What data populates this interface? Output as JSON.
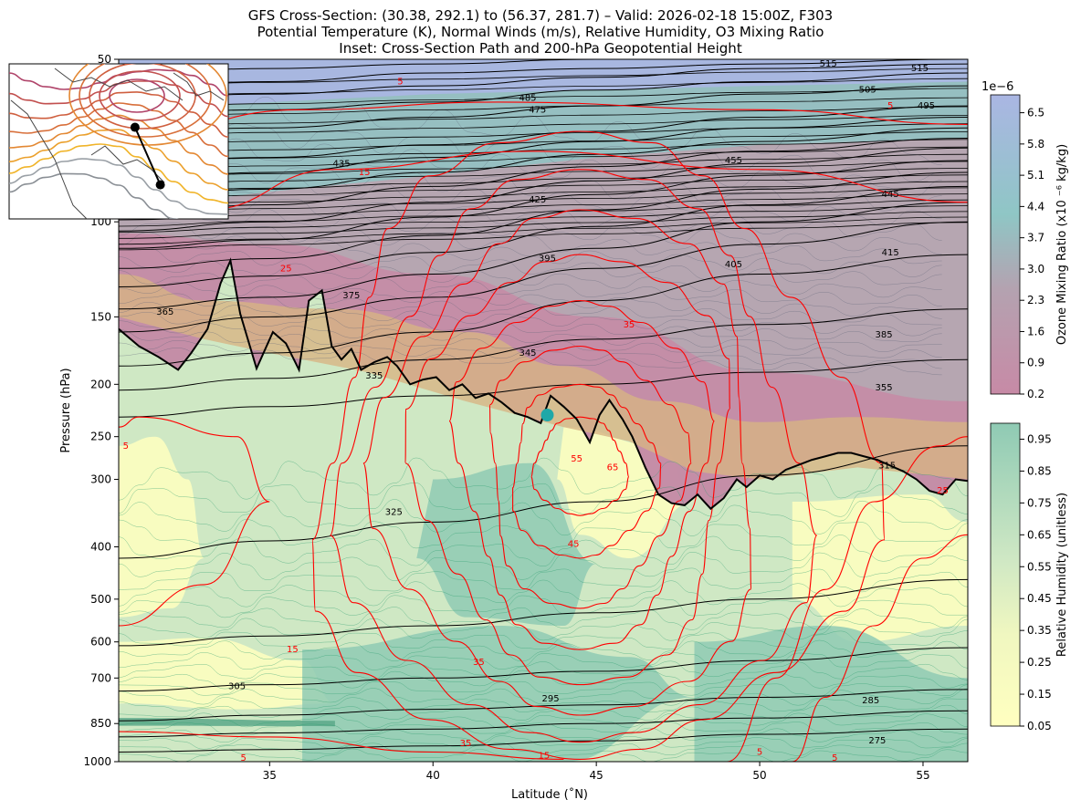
{
  "title_lines": [
    "GFS Cross-Section: (30.38, 292.1) to (56.37, 281.7) – Valid: 2026-02-18 15:00Z, F303",
    "Potential Temperature (K), Normal Winds (m/s), Relative Humidity, O3 Mixing Ratio",
    "Inset: Cross-Section Path and 200-hPa Geopotential Height"
  ],
  "colors": {
    "theta_line": "#000000",
    "wind_line": "#ff0000",
    "rh_low": "#ffffc0",
    "rh_mid": "#cfe8c4",
    "rh_high": "#8fcab4",
    "rh_contour": "#2a9d6e",
    "ozone_low": "#c78aa6",
    "ozone_mid": "#b4a2b0",
    "ozone_high": "#aab6e3",
    "tropopause_shade": "#d7b484",
    "tropopause_line": "#000000",
    "point_marker": "#1fa8a8"
  },
  "chart_data": {
    "type": "cross-section",
    "xlabel": "Latitude (˚N)",
    "ylabel": "Pressure (hPa)",
    "xlim": [
      30.38,
      56.37
    ],
    "ylim": [
      1000,
      50
    ],
    "yscale": "log",
    "xticks": [
      35,
      40,
      45,
      50,
      55
    ],
    "yticks": [
      1000,
      850,
      700,
      600,
      500,
      400,
      300,
      250,
      200,
      150,
      100,
      50
    ],
    "theta_contours": [
      {
        "value": 275,
        "levels": [
          960,
          950,
          935,
          915,
          890,
          870
        ]
      },
      {
        "value": 285,
        "levels": [
          900,
          885,
          870,
          850,
          830,
          805
        ]
      },
      {
        "value": 295,
        "levels": [
          840,
          820,
          800,
          785,
          760,
          735
        ]
      },
      {
        "value": 305,
        "levels": [
          740,
          720,
          700,
          680,
          650,
          615
        ]
      },
      {
        "value": 315,
        "levels": [
          610,
          585,
          560,
          530,
          500,
          460
        ]
      },
      {
        "value": 325,
        "levels": [
          420,
          390,
          360,
          330,
          295,
          260
        ]
      },
      {
        "value": 335,
        "levels": [
          230,
          220,
          210,
          200,
          190,
          180
        ]
      },
      {
        "value": 345,
        "levels": [
          205,
          195,
          180,
          165,
          155,
          145
        ]
      },
      {
        "value": 355,
        "levels": [
          185,
          175,
          160,
          140,
          125,
          115
        ]
      },
      {
        "value": 365,
        "levels": [
          160,
          150,
          138,
          122,
          110,
          100
        ]
      },
      {
        "value": 375,
        "levels": [
          145,
          138,
          125,
          112,
          100,
          92
        ]
      },
      {
        "value": 385,
        "levels": [
          132,
          126,
          114,
          102,
          93,
          86
        ]
      },
      {
        "value": 395,
        "levels": [
          122,
          117,
          106,
          95,
          87,
          81
        ]
      },
      {
        "value": 405,
        "levels": [
          112,
          108,
          98,
          89,
          82,
          77
        ]
      },
      {
        "value": 415,
        "levels": [
          104,
          100,
          92,
          84,
          78,
          73
        ]
      },
      {
        "value": 425,
        "levels": [
          97,
          93,
          86,
          79,
          74,
          70
        ]
      },
      {
        "value": 435,
        "levels": [
          90,
          87,
          81,
          75,
          71,
          67
        ]
      },
      {
        "value": 445,
        "levels": [
          84,
          81,
          76,
          71,
          67,
          64
        ]
      },
      {
        "value": 455,
        "levels": [
          78,
          76,
          72,
          68,
          64,
          61
        ]
      },
      {
        "value": 475,
        "levels": [
          68,
          67,
          64,
          61,
          58,
          56
        ]
      },
      {
        "value": 485,
        "levels": [
          63,
          62,
          60,
          57,
          55,
          53
        ]
      },
      {
        "value": 495,
        "levels": [
          59,
          58,
          56,
          54,
          52,
          51
        ]
      },
      {
        "value": 505,
        "levels": [
          56,
          55,
          53,
          52,
          51,
          50
        ]
      },
      {
        "value": 515,
        "levels": [
          53,
          52,
          51,
          50,
          50,
          50
        ]
      }
    ],
    "theta_lat_nodes": [
      30.38,
      35,
      40,
      45,
      50,
      56.37
    ],
    "theta_labels": [
      {
        "text": "275",
        "lat": 53.6,
        "p": 915
      },
      {
        "text": "285",
        "lat": 53.4,
        "p": 770
      },
      {
        "text": "295",
        "lat": 43.6,
        "p": 765
      },
      {
        "text": "305",
        "lat": 34.0,
        "p": 725
      },
      {
        "text": "315",
        "lat": 53.9,
        "p": 283
      },
      {
        "text": "325",
        "lat": 38.8,
        "p": 345
      },
      {
        "text": "335",
        "lat": 38.2,
        "p": 193
      },
      {
        "text": "345",
        "lat": 42.9,
        "p": 175
      },
      {
        "text": "355",
        "lat": 53.8,
        "p": 203
      },
      {
        "text": "365",
        "lat": 31.8,
        "p": 147
      },
      {
        "text": "375",
        "lat": 37.5,
        "p": 137
      },
      {
        "text": "385",
        "lat": 53.8,
        "p": 162
      },
      {
        "text": "395",
        "lat": 43.5,
        "p": 117
      },
      {
        "text": "405",
        "lat": 49.2,
        "p": 120
      },
      {
        "text": "415",
        "lat": 54.0,
        "p": 114
      },
      {
        "text": "425",
        "lat": 43.2,
        "p": 91
      },
      {
        "text": "435",
        "lat": 37.2,
        "p": 78
      },
      {
        "text": "445",
        "lat": 54.0,
        "p": 89
      },
      {
        "text": "455",
        "lat": 49.2,
        "p": 77
      },
      {
        "text": "475",
        "lat": 43.2,
        "p": 62
      },
      {
        "text": "485",
        "lat": 42.9,
        "p": 59
      },
      {
        "text": "495",
        "lat": 55.1,
        "p": 61
      },
      {
        "text": "505",
        "lat": 53.3,
        "p": 57
      },
      {
        "text": "515",
        "lat": 54.9,
        "p": 52
      },
      {
        "text": "515",
        "lat": 52.1,
        "p": 51
      }
    ],
    "wind_labels": [
      {
        "text": "5",
        "lat": 39.0,
        "p": 55
      },
      {
        "text": "5",
        "lat": 54.0,
        "p": 61
      },
      {
        "text": "15",
        "lat": 37.9,
        "p": 81
      },
      {
        "text": "25",
        "lat": 35.5,
        "p": 122
      },
      {
        "text": "35",
        "lat": 46.0,
        "p": 155
      },
      {
        "text": "5",
        "lat": 30.6,
        "p": 260
      },
      {
        "text": "55",
        "lat": 44.4,
        "p": 275
      },
      {
        "text": "65",
        "lat": 45.5,
        "p": 285
      },
      {
        "text": "45",
        "lat": 44.3,
        "p": 395
      },
      {
        "text": "25",
        "lat": 55.6,
        "p": 315
      },
      {
        "text": "15",
        "lat": 35.7,
        "p": 620
      },
      {
        "text": "35",
        "lat": 41.4,
        "p": 655
      },
      {
        "text": "35",
        "lat": 41.0,
        "p": 925
      },
      {
        "text": "15",
        "lat": 43.4,
        "p": 975
      },
      {
        "text": "5",
        "lat": 50.0,
        "p": 960
      },
      {
        "text": "5",
        "lat": 52.3,
        "p": 985
      },
      {
        "text": "5",
        "lat": 34.2,
        "p": 985
      }
    ],
    "tropopause": {
      "lat": [
        30.38,
        31.0,
        31.6,
        32.2,
        32.6,
        33.1,
        33.5,
        33.8,
        34.1,
        34.6,
        35.1,
        35.5,
        35.9,
        36.2,
        36.6,
        36.9,
        37.2,
        37.5,
        37.8,
        38.2,
        38.6,
        38.9,
        39.3,
        39.7,
        40.1,
        40.5,
        40.9,
        41.3,
        41.7,
        42.1,
        42.5,
        42.9,
        43.3,
        43.6,
        44.0,
        44.4,
        44.8,
        45.1,
        45.4,
        45.8,
        46.1,
        46.5,
        46.9,
        47.3,
        47.7,
        48.1,
        48.5,
        48.9,
        49.3,
        49.6,
        50.0,
        50.4,
        50.8,
        51.2,
        51.6,
        52.0,
        52.4,
        52.8,
        53.2,
        53.6,
        54.0,
        54.4,
        54.8,
        55.2,
        55.6,
        56.0,
        56.37
      ],
      "p": [
        158,
        170,
        178,
        188,
        175,
        158,
        130,
        118,
        148,
        187,
        160,
        168,
        188,
        140,
        134,
        170,
        180,
        172,
        188,
        182,
        178,
        185,
        200,
        196,
        194,
        205,
        200,
        212,
        208,
        216,
        226,
        230,
        236,
        210,
        220,
        232,
        256,
        228,
        214,
        232,
        250,
        285,
        320,
        332,
        335,
        320,
        340,
        325,
        300,
        310,
        295,
        300,
        288,
        282,
        276,
        272,
        268,
        268,
        272,
        276,
        283,
        290,
        300,
        315,
        320,
        300,
        302
      ]
    },
    "point_marker": {
      "lat": 43.5,
      "p": 228
    },
    "colorbars": [
      {
        "label": "Ozone Mixing Ratio (x10 ⁻⁶ kg/kg)",
        "exponent_label": "1e−6",
        "ticks": [
          "6.5",
          "5.8",
          "5.1",
          "4.4",
          "3.7",
          "3.0",
          "2.3",
          "1.6",
          "0.9",
          "0.2"
        ],
        "range": [
          0.2,
          6.9
        ]
      },
      {
        "label": "Relative Humidity (unitless)",
        "ticks": [
          "0.95",
          "0.85",
          "0.75",
          "0.65",
          "0.55",
          "0.45",
          "0.35",
          "0.25",
          "0.15",
          "0.05"
        ],
        "range": [
          0.05,
          1.0
        ]
      }
    ],
    "inset": {
      "path": [
        {
          "lat": 30.38,
          "lon": 292.1
        },
        {
          "lat": 56.37,
          "lon": 281.7
        }
      ]
    }
  }
}
